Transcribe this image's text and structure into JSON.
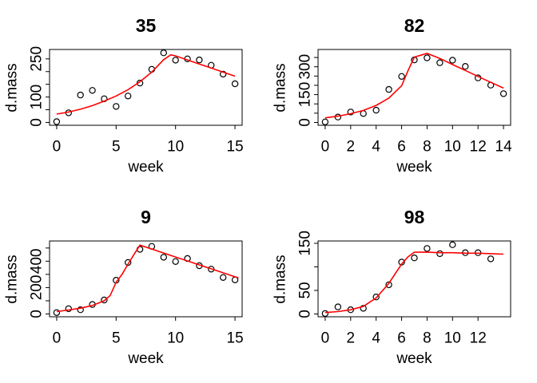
{
  "figure": {
    "background": "#FFFFFF",
    "axis_color": "#000000",
    "point_color": "#000000",
    "fit_line_color": "#FF0000",
    "text_color": "#000000"
  },
  "chart_data": [
    {
      "type": "scatter",
      "title": "35",
      "xlabel": "week",
      "ylabel": "d.mass",
      "grid": false,
      "legend": "none",
      "xlim": [
        0,
        15
      ],
      "ylim": [
        0,
        276
      ],
      "xticks": [
        0,
        5,
        10,
        15
      ],
      "xtick_labels": [
        "0",
        "5",
        "10",
        "15"
      ],
      "yticks": [
        0,
        50,
        100,
        150,
        200,
        250
      ],
      "ytick_labels": [
        "0",
        "",
        "100",
        "",
        "",
        "250"
      ],
      "x": [
        0,
        1,
        2,
        3,
        4,
        5,
        6,
        7,
        8,
        9,
        10,
        11,
        12,
        13,
        14,
        15
      ],
      "y": [
        3,
        38,
        108,
        126,
        93,
        63,
        104,
        155,
        209,
        274,
        245,
        250,
        246,
        225,
        190,
        152
      ],
      "fit_x": [
        0,
        1,
        2,
        3,
        4,
        5,
        6,
        7,
        8,
        9,
        9.6,
        10,
        11,
        12,
        13,
        14,
        15
      ],
      "fit_y": [
        33,
        41,
        52,
        66,
        84,
        104,
        129,
        160,
        198,
        247,
        266,
        262,
        246,
        230,
        214,
        198,
        182
      ]
    },
    {
      "type": "scatter",
      "title": "82",
      "xlabel": "week",
      "ylabel": "d.mass",
      "grid": false,
      "legend": "none",
      "xlim": [
        0,
        14
      ],
      "ylim": [
        0,
        378
      ],
      "xticks": [
        0,
        2,
        4,
        6,
        8,
        10,
        12,
        14
      ],
      "xtick_labels": [
        "0",
        "2",
        "4",
        "6",
        "8",
        "10",
        "12",
        "14"
      ],
      "yticks": [
        0,
        50,
        100,
        150,
        200,
        250,
        300,
        350
      ],
      "ytick_labels": [
        "0",
        "",
        "",
        "150",
        "",
        "",
        "300",
        ""
      ],
      "x": [
        0,
        1,
        2,
        3,
        4,
        5,
        6,
        7,
        8,
        9,
        10,
        11,
        12,
        13,
        14
      ],
      "y": [
        3,
        29,
        56,
        48,
        66,
        178,
        248,
        337,
        348,
        322,
        335,
        302,
        240,
        201,
        155
      ],
      "fit_x": [
        0,
        1,
        2,
        3,
        4,
        5,
        6,
        6.5,
        7,
        8,
        9,
        10,
        11,
        12,
        13,
        14
      ],
      "fit_y": [
        25,
        34,
        47,
        65,
        92,
        131,
        198,
        278,
        352,
        372,
        345,
        312,
        280,
        248,
        216,
        185
      ]
    },
    {
      "type": "scatter",
      "title": "9",
      "xlabel": "week",
      "ylabel": "d.mass",
      "grid": false,
      "legend": "none",
      "xlim": [
        0,
        15
      ],
      "ylim": [
        0,
        532
      ],
      "xticks": [
        0,
        5,
        10,
        15
      ],
      "xtick_labels": [
        "0",
        "5",
        "10",
        "15"
      ],
      "yticks": [
        0,
        100,
        200,
        300,
        400,
        500
      ],
      "ytick_labels": [
        "0",
        "",
        "200",
        "",
        "400",
        ""
      ],
      "x": [
        0,
        1,
        2,
        3,
        4,
        5,
        6,
        7,
        8,
        9,
        10,
        11,
        12,
        13,
        14,
        15
      ],
      "y": [
        10,
        40,
        32,
        72,
        106,
        256,
        390,
        490,
        512,
        430,
        397,
        420,
        366,
        340,
        276,
        258
      ],
      "fit_x": [
        0,
        1,
        2,
        3,
        4,
        4.5,
        5,
        5.5,
        6,
        6.5,
        7,
        8,
        9,
        10,
        11,
        12,
        13,
        14,
        15,
        15.3
      ],
      "fit_y": [
        18,
        30,
        44,
        64,
        100,
        140,
        240,
        300,
        378,
        450,
        522,
        492,
        462,
        432,
        402,
        372,
        342,
        312,
        282,
        273
      ]
    },
    {
      "type": "scatter",
      "title": "98",
      "xlabel": "week",
      "ylabel": "d.mass",
      "grid": false,
      "legend": "none",
      "xlim": [
        0,
        14
      ],
      "ylim": [
        0,
        149
      ],
      "xticks": [
        0,
        2,
        4,
        6,
        8,
        10,
        12
      ],
      "xtick_labels": [
        "0",
        "2",
        "4",
        "6",
        "8",
        "10",
        "12"
      ],
      "yticks": [
        0,
        50,
        100,
        150
      ],
      "ytick_labels": [
        "0",
        "50",
        "",
        "150"
      ],
      "x": [
        0,
        1,
        2,
        3,
        4,
        5,
        6,
        7,
        8,
        9,
        10,
        11,
        12,
        13
      ],
      "y": [
        1,
        15,
        9,
        12,
        36,
        62,
        110,
        119,
        139,
        128,
        147,
        130,
        130,
        117
      ],
      "fit_x": [
        0,
        1,
        2,
        3,
        4,
        5,
        6,
        6.5,
        7,
        8,
        9,
        10,
        11,
        12,
        13,
        14
      ],
      "fit_y": [
        3,
        5,
        9,
        16,
        34,
        65,
        106,
        121,
        131,
        131,
        130,
        130,
        129,
        129,
        128,
        127
      ]
    }
  ]
}
